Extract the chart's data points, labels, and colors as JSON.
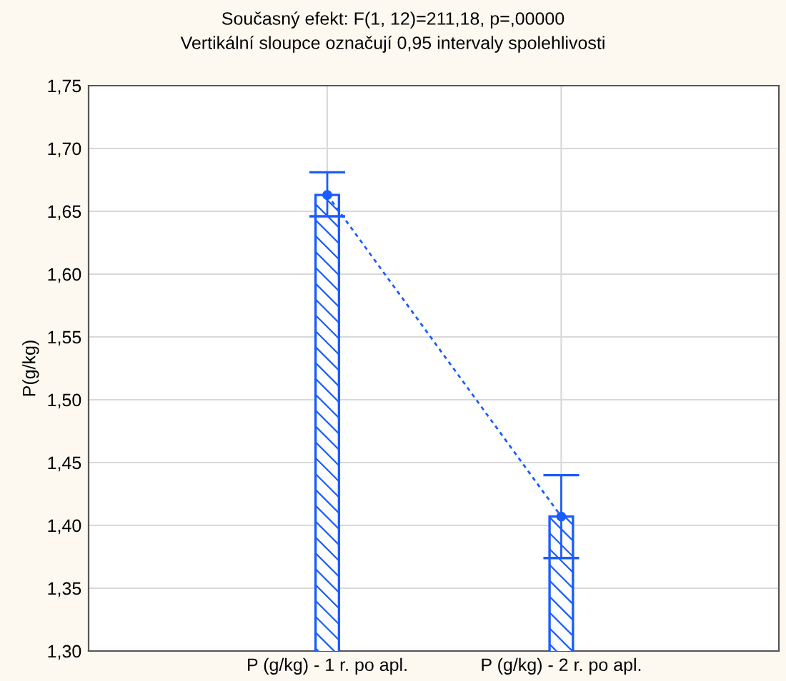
{
  "chart_data": {
    "type": "bar",
    "title": "Současný efekt: F(1, 12)=211,18, p=,00000",
    "subtitle": "Vertikální sloupce označují 0,95 intervaly spolehlivosti",
    "ylabel": "P(g/kg)",
    "categories": [
      "P (g/kg) - 1 r. po apl.",
      "P (g/kg) - 2 r. po apl."
    ],
    "series": [
      {
        "color": "#1a5cff",
        "values": [
          1.663,
          1.407
        ],
        "errors": [
          [
            1.646,
            1.681
          ],
          [
            1.374,
            1.44
          ]
        ]
      },
      {
        "type": "line",
        "color": "#1a5cff",
        "values": [
          1.663,
          1.407
        ],
        "line_style": "dashed",
        "marker": "circle"
      }
    ],
    "ylim": [
      1.3,
      1.75
    ],
    "yticks": [
      {
        "value": 1.3,
        "label": "1,30"
      },
      {
        "value": 1.35,
        "label": "1,35"
      },
      {
        "value": 1.4,
        "label": "1,40"
      },
      {
        "value": 1.45,
        "label": "1,45"
      },
      {
        "value": 1.5,
        "label": "1,50"
      },
      {
        "value": 1.55,
        "label": "1,55"
      },
      {
        "value": 1.6,
        "label": "1,60"
      },
      {
        "value": 1.65,
        "label": "1,65"
      },
      {
        "value": 1.7,
        "label": "1,70"
      },
      {
        "value": 1.75,
        "label": "1,75"
      }
    ],
    "grid": true
  }
}
